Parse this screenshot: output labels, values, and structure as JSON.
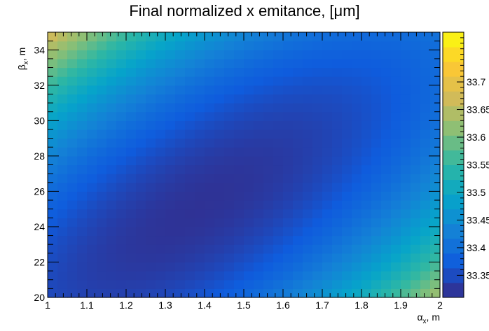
{
  "chart_data": {
    "type": "heatmap",
    "title": "Final normalized x emitance, [μm]",
    "xlabel": {
      "symbol": "α",
      "sub": "x",
      "suffix": ", m"
    },
    "ylabel": {
      "symbol": "β",
      "sub": "x",
      "suffix": ", m"
    },
    "xlim": [
      1,
      2
    ],
    "ylim": [
      20,
      35
    ],
    "x_ticks": [
      "1",
      "1.1",
      "1.2",
      "1.3",
      "1.4",
      "1.5",
      "1.6",
      "1.7",
      "1.8",
      "1.9",
      "2"
    ],
    "y_ticks": [
      "20",
      "22",
      "24",
      "26",
      "28",
      "30",
      "32",
      "34"
    ],
    "colorbar_range": [
      33.31,
      33.79
    ],
    "colorbar_ticks": [
      "33.35",
      "33.4",
      "33.45",
      "33.5",
      "33.55",
      "33.6",
      "33.65",
      "33.7"
    ],
    "grid_nx": 40,
    "grid_ny": 30,
    "palette": [
      "#352a87",
      "#0f5cdd",
      "#1481d6",
      "#06a4ca",
      "#2eb7a4",
      "#87bf77",
      "#d1bb59",
      "#fec832",
      "#f9fb0e"
    ],
    "value_surface": {
      "description_of_terms": "value = base + a*(x-x0)^2 + b*(y-y0)^2 + c*(x-x0)*(y-y0)",
      "base": 33.32,
      "x0": 1.38,
      "y0": 25.0,
      "a": 0.42,
      "b": 0.0016,
      "c": -0.038
    },
    "grid": false,
    "legend": "colorbar-right"
  }
}
